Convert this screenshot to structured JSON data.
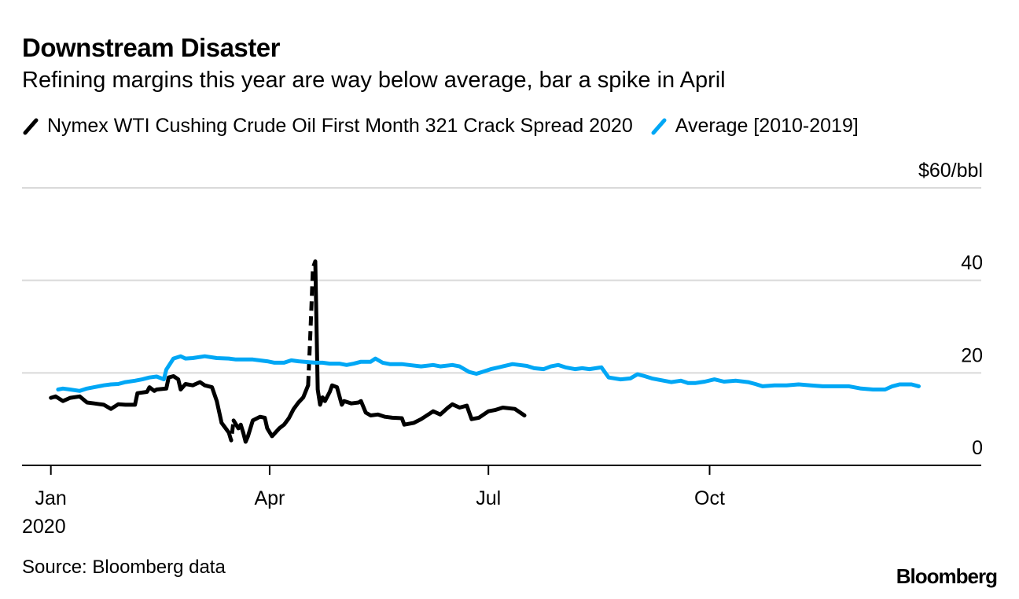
{
  "chart_data": {
    "type": "line",
    "title": "Downstream Disaster",
    "subtitle": "Refining margins this year are way below average, bar a spike in April",
    "xlabel": "",
    "ylabel": "$60/bbl",
    "x_unit": "day of year 2020",
    "xlim": [
      -12,
      387
    ],
    "ylim": [
      0,
      60
    ],
    "yticks": [
      {
        "value": 0,
        "label": "0"
      },
      {
        "value": 20,
        "label": "20"
      },
      {
        "value": 40,
        "label": "40"
      },
      {
        "value": 60,
        "label": "$60/bbl"
      }
    ],
    "xticks": [
      {
        "value": 0,
        "label": "Jan",
        "sublabel": "2020"
      },
      {
        "value": 91,
        "label": "Apr"
      },
      {
        "value": 182,
        "label": "Jul"
      },
      {
        "value": 274,
        "label": "Oct"
      }
    ],
    "grid": true,
    "legend_position": "top-left",
    "series": [
      {
        "name": "Nymex WTI Cushing Crude Oil First Month 321 Crack Spread 2020",
        "color": "#000000",
        "dashed_ranges": [
          [
            74,
            76
          ],
          [
            80,
            81
          ],
          [
            107,
            110
          ]
        ],
        "points": [
          [
            0,
            14.6
          ],
          [
            2,
            14.9
          ],
          [
            5,
            13.9
          ],
          [
            8,
            14.6
          ],
          [
            12,
            14.9
          ],
          [
            15,
            13.6
          ],
          [
            18,
            13.4
          ],
          [
            22,
            13.1
          ],
          [
            25,
            12.2
          ],
          [
            28,
            13.2
          ],
          [
            31,
            13.1
          ],
          [
            35,
            13.1
          ],
          [
            36,
            15.6
          ],
          [
            40,
            15.9
          ],
          [
            41,
            16.9
          ],
          [
            43,
            16.1
          ],
          [
            44,
            16.4
          ],
          [
            48,
            16.6
          ],
          [
            49,
            19.0
          ],
          [
            51,
            19.3
          ],
          [
            53,
            18.6
          ],
          [
            54,
            16.4
          ],
          [
            56,
            17.6
          ],
          [
            59,
            17.3
          ],
          [
            62,
            18.0
          ],
          [
            64,
            17.3
          ],
          [
            67,
            16.9
          ],
          [
            69,
            13.9
          ],
          [
            71,
            9.2
          ],
          [
            74,
            7.1
          ],
          [
            75,
            5.4
          ],
          [
            76,
            9.7
          ],
          [
            78,
            8.0
          ],
          [
            79,
            8.8
          ],
          [
            80,
            7.1
          ],
          [
            81,
            5.1
          ],
          [
            82,
            6.3
          ],
          [
            84,
            9.7
          ],
          [
            87,
            10.5
          ],
          [
            89,
            10.3
          ],
          [
            90,
            8.0
          ],
          [
            92,
            6.3
          ],
          [
            95,
            8.0
          ],
          [
            97,
            8.8
          ],
          [
            99,
            10.2
          ],
          [
            101,
            12.2
          ],
          [
            103,
            13.6
          ],
          [
            105,
            14.7
          ],
          [
            107,
            17.3
          ],
          [
            108,
            29.2
          ],
          [
            109,
            42.7
          ],
          [
            110,
            44.1
          ],
          [
            111,
            16.4
          ],
          [
            112,
            13.1
          ],
          [
            113,
            14.7
          ],
          [
            114,
            13.9
          ],
          [
            116,
            15.9
          ],
          [
            117,
            17.3
          ],
          [
            119,
            16.9
          ],
          [
            121,
            13.1
          ],
          [
            122,
            13.9
          ],
          [
            125,
            13.4
          ],
          [
            128,
            13.6
          ],
          [
            129,
            13.9
          ],
          [
            131,
            11.4
          ],
          [
            133,
            10.8
          ],
          [
            136,
            11.0
          ],
          [
            139,
            10.5
          ],
          [
            142,
            10.3
          ],
          [
            146,
            10.2
          ],
          [
            147,
            8.8
          ],
          [
            151,
            9.2
          ],
          [
            154,
            10.0
          ],
          [
            157,
            11.0
          ],
          [
            159,
            11.7
          ],
          [
            162,
            11.0
          ],
          [
            165,
            12.4
          ],
          [
            167,
            13.2
          ],
          [
            170,
            12.5
          ],
          [
            173,
            12.9
          ],
          [
            175,
            10.0
          ],
          [
            178,
            10.3
          ],
          [
            182,
            11.7
          ],
          [
            185,
            12.0
          ],
          [
            188,
            12.5
          ],
          [
            193,
            12.2
          ],
          [
            197,
            10.8
          ]
        ]
      },
      {
        "name": "Average [2010-2019]",
        "color": "#00a7f5",
        "dashed_ranges": [],
        "points": [
          [
            3,
            16.4
          ],
          [
            5,
            16.6
          ],
          [
            8,
            16.4
          ],
          [
            12,
            16.1
          ],
          [
            15,
            16.6
          ],
          [
            18,
            16.9
          ],
          [
            22,
            17.3
          ],
          [
            25,
            17.5
          ],
          [
            28,
            17.6
          ],
          [
            31,
            18.0
          ],
          [
            35,
            18.3
          ],
          [
            38,
            18.6
          ],
          [
            41,
            19.0
          ],
          [
            44,
            19.2
          ],
          [
            47,
            18.6
          ],
          [
            48,
            20.7
          ],
          [
            51,
            23.1
          ],
          [
            54,
            23.6
          ],
          [
            56,
            23.1
          ],
          [
            59,
            23.2
          ],
          [
            64,
            23.6
          ],
          [
            69,
            23.2
          ],
          [
            74,
            23.1
          ],
          [
            77,
            22.9
          ],
          [
            84,
            22.9
          ],
          [
            90,
            22.5
          ],
          [
            93,
            22.2
          ],
          [
            97,
            22.2
          ],
          [
            100,
            22.7
          ],
          [
            103,
            22.5
          ],
          [
            110,
            22.2
          ],
          [
            113,
            22.2
          ],
          [
            116,
            22.0
          ],
          [
            120,
            22.0
          ],
          [
            123,
            21.7
          ],
          [
            126,
            22.0
          ],
          [
            129,
            22.4
          ],
          [
            133,
            22.4
          ],
          [
            135,
            23.1
          ],
          [
            138,
            22.2
          ],
          [
            141,
            21.9
          ],
          [
            146,
            21.9
          ],
          [
            149,
            21.7
          ],
          [
            154,
            21.4
          ],
          [
            159,
            21.7
          ],
          [
            162,
            21.4
          ],
          [
            167,
            21.7
          ],
          [
            170,
            21.4
          ],
          [
            174,
            20.2
          ],
          [
            177,
            19.8
          ],
          [
            180,
            20.3
          ],
          [
            183,
            20.8
          ],
          [
            188,
            21.4
          ],
          [
            192,
            21.9
          ],
          [
            195,
            21.7
          ],
          [
            198,
            21.5
          ],
          [
            201,
            21.0
          ],
          [
            205,
            20.8
          ],
          [
            208,
            21.4
          ],
          [
            211,
            21.7
          ],
          [
            214,
            21.2
          ],
          [
            218,
            20.8
          ],
          [
            221,
            21.0
          ],
          [
            224,
            20.8
          ],
          [
            229,
            21.2
          ],
          [
            232,
            19.0
          ],
          [
            237,
            18.6
          ],
          [
            241,
            18.8
          ],
          [
            244,
            19.7
          ],
          [
            247,
            19.3
          ],
          [
            250,
            18.8
          ],
          [
            255,
            18.3
          ],
          [
            258,
            18.0
          ],
          [
            262,
            18.3
          ],
          [
            265,
            17.8
          ],
          [
            268,
            17.8
          ],
          [
            272,
            18.1
          ],
          [
            276,
            18.6
          ],
          [
            280,
            18.1
          ],
          [
            285,
            18.3
          ],
          [
            290,
            18.0
          ],
          [
            293,
            17.6
          ],
          [
            296,
            17.1
          ],
          [
            301,
            17.3
          ],
          [
            306,
            17.3
          ],
          [
            311,
            17.5
          ],
          [
            316,
            17.3
          ],
          [
            321,
            17.1
          ],
          [
            325,
            17.1
          ],
          [
            332,
            17.1
          ],
          [
            337,
            16.6
          ],
          [
            342,
            16.4
          ],
          [
            347,
            16.4
          ],
          [
            350,
            17.1
          ],
          [
            353,
            17.5
          ],
          [
            358,
            17.5
          ],
          [
            361,
            17.1
          ]
        ]
      }
    ]
  },
  "footer": {
    "source": "Source: Bloomberg data",
    "logo_text": "Bloomberg"
  }
}
